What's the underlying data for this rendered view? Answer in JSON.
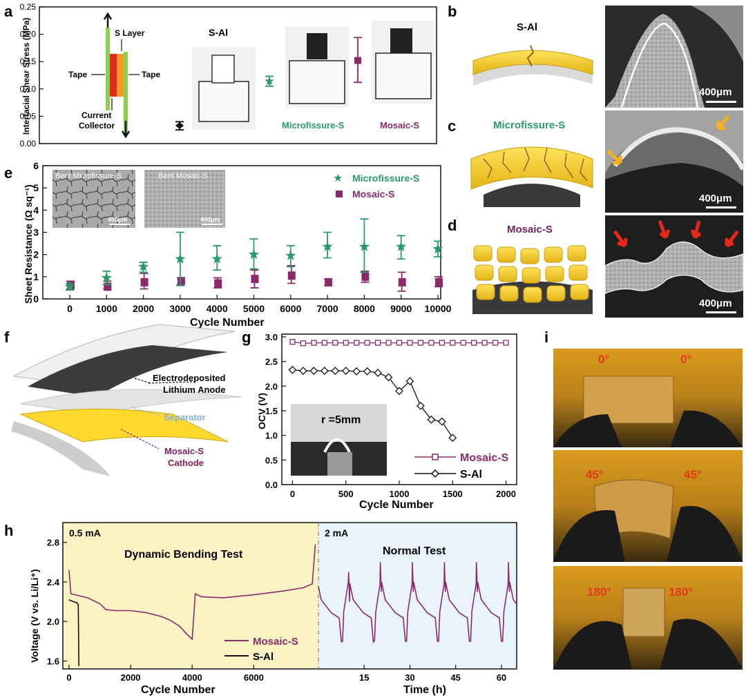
{
  "panel_letters": {
    "a": "a",
    "b": "b",
    "c": "c",
    "d": "d",
    "e": "e",
    "f": "f",
    "g": "g",
    "h": "h",
    "i": "i"
  },
  "colors": {
    "green": "#2a9a6a",
    "purple": "#8b2a6b",
    "black": "#111111",
    "yellow_region": "#fbf3c4",
    "blue_region": "#e8f3fb",
    "separator": "#7fb3e0",
    "mosaic_label": "#7a1f5e",
    "sulfur_yellow": "#f5d629",
    "photo_dark": "#2a2a2a",
    "photo_amber": "#e7a21e",
    "angle_red": "#e03a1e"
  },
  "panel_a": {
    "ylabel": "Interfacial Shear Stress (MPa)",
    "yticks": [
      "0.00",
      "0.05",
      "0.10",
      "0.15",
      "0.20",
      "0.25"
    ],
    "schematic": {
      "top": "S Layer",
      "left": "Tape",
      "right": "Tape",
      "bottom1": "Current",
      "bottom2": "Collector"
    },
    "label_sal": "S-Al",
    "label_micro": "Microfissure-S",
    "label_mosaic": "Mosaic-S"
  },
  "panel_b": {
    "title": "S-Al",
    "scale": "400μm"
  },
  "panel_c": {
    "title": "Microfissure-S",
    "scale": "400μm"
  },
  "panel_d": {
    "title": "Mosaic-S",
    "scale": "400μm"
  },
  "panel_e": {
    "ylabel": "Sheet Resistance (Ω sq⁻¹)",
    "xlabel": "Cycle Number",
    "legend_micro": "Microfissure-S",
    "legend_mosaic": "Mosaic-S",
    "inset1_label": "Bent Microfissure-S",
    "inset2_label": "Bent Mosaic-S",
    "inset_scale": "400μm"
  },
  "panel_f": {
    "anode1": "Electrodeposited",
    "anode2": "Lithium Anode",
    "separator": "Separator",
    "cathode1": "Mosaic-S",
    "cathode2": "Cathode"
  },
  "panel_g": {
    "ylabel": "OCV (V)",
    "xlabel": "Cycle Number",
    "inset_label": "r =5mm",
    "legend_mosaic": "Mosaic-S",
    "legend_sal": "S-Al"
  },
  "panel_h": {
    "ylabel": "Voltage (V vs. Li/Li⁺)",
    "xlabel_left": "Cycle Number",
    "xlabel_right": "Time (h)",
    "current_left": "0.5 mA",
    "current_right": "2 mA",
    "title_left": "Dynamic Bending Test",
    "title_right": "Normal Test",
    "legend_mosaic": "Mosaic-S",
    "legend_sal": "S-Al"
  },
  "panel_i": {
    "photo1": {
      "left": "0°",
      "right": "0°"
    },
    "photo2": {
      "left": "45°",
      "right": "45°"
    },
    "photo3": {
      "left": "180°",
      "right": "180°"
    }
  },
  "chart_data": [
    {
      "id": "a",
      "type": "scatter",
      "ylabel": "Interfacial Shear Stress (MPa)",
      "ylim": [
        0,
        0.25
      ],
      "yticks": [
        0,
        0.05,
        0.1,
        0.15,
        0.2,
        0.25
      ],
      "series": [
        {
          "name": "S-Al",
          "value": 0.033,
          "err_low": 0.025,
          "err_high": 0.04,
          "marker": "diamond"
        },
        {
          "name": "Microfissure-S",
          "value": 0.114,
          "err_low": 0.105,
          "err_high": 0.123,
          "marker": "star"
        },
        {
          "name": "Mosaic-S",
          "value": 0.152,
          "err_low": 0.112,
          "err_high": 0.194,
          "marker": "square"
        }
      ]
    },
    {
      "id": "e",
      "type": "scatter",
      "xlabel": "Cycle Number",
      "ylabel": "Sheet Resistance (Ω sq⁻¹)",
      "ylim": [
        0,
        6
      ],
      "yticks": [
        0,
        1,
        2,
        3,
        4,
        5,
        6
      ],
      "categories": [
        "0",
        "1000",
        "2000",
        "3000",
        "4000",
        "5000",
        "6000",
        "7000",
        "8000",
        "9000",
        "10000"
      ],
      "series": [
        {
          "name": "Microfissure-S",
          "marker": "star",
          "values": [
            0.55,
            0.95,
            1.45,
            1.8,
            1.8,
            2.0,
            1.95,
            2.35,
            2.35,
            2.35,
            2.25
          ],
          "err_low": [
            0.4,
            0.65,
            1.2,
            0.6,
            1.3,
            1.35,
            1.45,
            1.85,
            1.2,
            1.8,
            1.9
          ],
          "err_high": [
            0.7,
            1.25,
            1.65,
            3.0,
            2.4,
            2.7,
            2.4,
            3.0,
            3.6,
            2.85,
            2.6
          ]
        },
        {
          "name": "Mosaic-S",
          "marker": "square",
          "values": [
            0.6,
            0.55,
            0.75,
            0.8,
            0.7,
            0.9,
            1.05,
            0.75,
            1.0,
            0.75,
            0.75
          ],
          "err_low": [
            0.45,
            0.45,
            0.45,
            0.65,
            0.5,
            0.5,
            0.7,
            0.6,
            0.75,
            0.35,
            0.55
          ],
          "err_high": [
            0.8,
            0.8,
            1.15,
            0.95,
            0.95,
            1.3,
            1.5,
            0.9,
            1.25,
            1.2,
            1.0
          ]
        }
      ]
    },
    {
      "id": "g",
      "type": "line",
      "xlabel": "Cycle Number",
      "ylabel": "OCV (V)",
      "xlim": [
        -100,
        2100
      ],
      "xticks": [
        0,
        500,
        1000,
        1500,
        2000
      ],
      "ylim": [
        0,
        3.0
      ],
      "yticks": [
        0.0,
        0.5,
        1.0,
        1.5,
        2.0,
        2.5,
        3.0
      ],
      "series": [
        {
          "name": "Mosaic-S",
          "marker": "square",
          "x": [
            0,
            100,
            200,
            300,
            400,
            500,
            600,
            700,
            800,
            900,
            1000,
            1100,
            1200,
            1300,
            1400,
            1500,
            1600,
            1700,
            1800,
            1900,
            2000
          ],
          "y": [
            2.9,
            2.87,
            2.88,
            2.88,
            2.88,
            2.88,
            2.88,
            2.88,
            2.88,
            2.88,
            2.88,
            2.88,
            2.88,
            2.88,
            2.88,
            2.88,
            2.88,
            2.88,
            2.88,
            2.88,
            2.88
          ]
        },
        {
          "name": "S-Al",
          "marker": "diamond",
          "x": [
            0,
            100,
            200,
            300,
            400,
            500,
            600,
            700,
            800,
            900,
            1000,
            1100,
            1200,
            1300,
            1400,
            1500
          ],
          "y": [
            2.33,
            2.31,
            2.31,
            2.31,
            2.31,
            2.31,
            2.3,
            2.3,
            2.27,
            2.18,
            1.9,
            2.1,
            1.6,
            1.32,
            1.28,
            0.95
          ]
        }
      ]
    },
    {
      "id": "h",
      "type": "line",
      "ylabel": "Voltage (V vs. Li/Li⁺)",
      "ylim": [
        1.52,
        3.0
      ],
      "yticks": [
        1.6,
        2.0,
        2.4,
        2.8
      ],
      "left_xlabel": "Cycle Number",
      "left_xticks": [
        0,
        2000,
        4000,
        6000
      ],
      "left_xlim": [
        -200,
        8100
      ],
      "right_xlabel": "Time (h)",
      "right_xticks": [
        15,
        30,
        45,
        60
      ],
      "right_xlim": [
        0,
        65
      ],
      "series": [
        {
          "name": "Mosaic-S",
          "left_x": [
            0,
            60,
            200,
            600,
            1000,
            1200,
            1500,
            2000,
            2500,
            3000,
            3300,
            3600,
            3800,
            4000,
            4050,
            4100,
            4300,
            5000,
            6000,
            7000,
            7600,
            7900,
            8000
          ],
          "left_y": [
            2.52,
            2.28,
            2.27,
            2.24,
            2.18,
            2.12,
            2.11,
            2.11,
            2.09,
            2.05,
            2.01,
            1.95,
            1.88,
            1.82,
            2.05,
            2.28,
            2.25,
            2.24,
            2.27,
            2.31,
            2.34,
            2.38,
            2.78
          ],
          "right_period_h": 10.5,
          "right_cycles": 6,
          "right_first_peak_h": 9.8
        },
        {
          "name": "S-Al",
          "left_x": [
            0,
            60,
            150,
            250,
            300,
            310,
            320
          ],
          "left_y": [
            2.22,
            2.21,
            2.2,
            2.19,
            2.17,
            1.9,
            1.55
          ]
        }
      ]
    }
  ]
}
